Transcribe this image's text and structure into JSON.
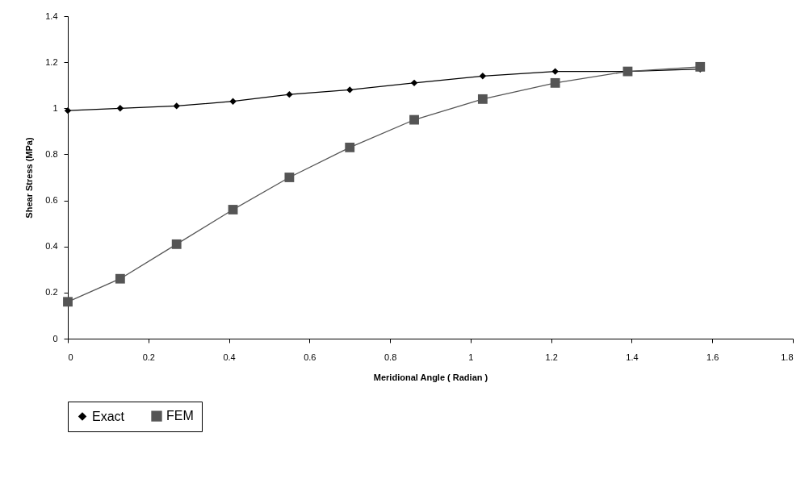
{
  "chart_data": {
    "type": "line",
    "xlabel": "Meridional Angle ( Radian )",
    "ylabel": "Shear Stress (MPa)",
    "x": [
      0,
      0.13,
      0.27,
      0.41,
      0.55,
      0.7,
      0.86,
      1.03,
      1.21,
      1.39,
      1.57
    ],
    "series": [
      {
        "name": "Exact",
        "color": "#000000",
        "marker": "diamond",
        "values": [
          0.99,
          1.0,
          1.01,
          1.03,
          1.06,
          1.08,
          1.11,
          1.14,
          1.16,
          1.16,
          1.17
        ]
      },
      {
        "name": "FEM",
        "color": "#555555",
        "marker": "square",
        "values": [
          0.16,
          0.26,
          0.41,
          0.56,
          0.7,
          0.83,
          0.95,
          1.04,
          1.11,
          1.16,
          1.18
        ]
      }
    ],
    "xlim": [
      0,
      1.8
    ],
    "xticks": [
      0,
      0.2,
      0.4,
      0.6,
      0.8,
      1,
      1.2,
      1.4,
      1.6,
      1.8
    ],
    "ylim": [
      0,
      1.4
    ],
    "yticks": [
      0,
      0.2,
      0.4,
      0.6,
      0.8,
      1,
      1.2,
      1.4
    ],
    "grid": false,
    "legend": "bottom",
    "line_style": "solid"
  }
}
